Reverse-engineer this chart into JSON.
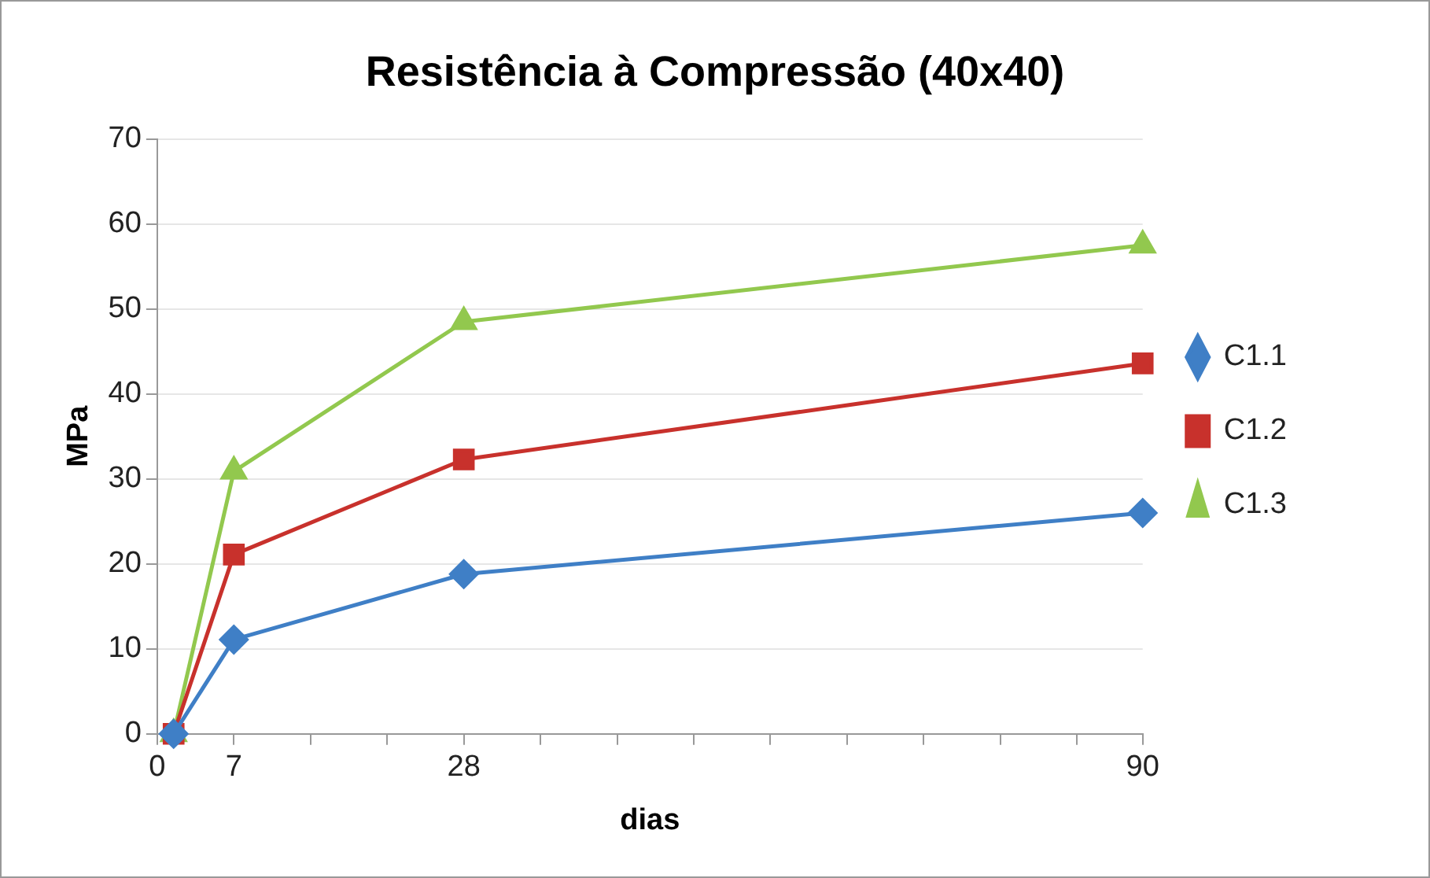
{
  "chart_data": {
    "type": "line",
    "title": "Resistência à Compressão (40x40)",
    "xlabel": "dias",
    "ylabel": "MPa",
    "xlim": [
      0,
      90
    ],
    "xticks": [
      0,
      7,
      {
        "value": 14,
        "label": null
      },
      {
        "value": 21,
        "label": null
      },
      28,
      {
        "value": 35,
        "label": null
      },
      {
        "value": 42,
        "label": null
      },
      {
        "value": 49,
        "label": null
      },
      {
        "value": 56,
        "label": null
      },
      {
        "value": 63,
        "label": null
      },
      {
        "value": 70,
        "label": null
      },
      {
        "value": 77,
        "label": null
      },
      {
        "value": 84,
        "label": null
      },
      90
    ],
    "ylim": [
      0,
      70
    ],
    "yticks": [
      0,
      10,
      20,
      30,
      40,
      50,
      60,
      70
    ],
    "grid": "y",
    "legend": "right",
    "series": [
      {
        "name": "C1.1",
        "color": "#3f7fc6",
        "marker": "diamond",
        "x": [
          1.5,
          7,
          28,
          90
        ],
        "values": [
          0,
          11.1,
          18.8,
          26
        ]
      },
      {
        "name": "C1.2",
        "color": "#c8312c",
        "marker": "square",
        "x": [
          1.5,
          7,
          28,
          90
        ],
        "values": [
          0,
          21.1,
          32.3,
          43.6
        ]
      },
      {
        "name": "C1.3",
        "color": "#92c84e",
        "marker": "triangle",
        "x": [
          1.5,
          7,
          28,
          90
        ],
        "values": [
          0,
          30.9,
          48.5,
          57.5
        ]
      }
    ]
  }
}
